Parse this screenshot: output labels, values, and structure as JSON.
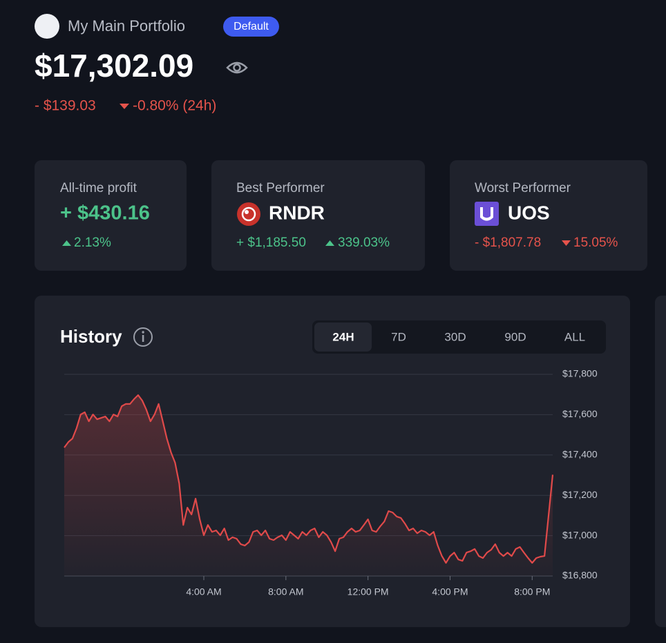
{
  "header": {
    "portfolio_name": "My Main Portfolio",
    "badge": "Default",
    "balance": "$17,302.09",
    "change_amount": "- $139.03",
    "change_percent": "-0.80% (24h)"
  },
  "cards": [
    {
      "label": "All-time profit",
      "value": "+ $430.16",
      "percent": "2.13%"
    },
    {
      "label": "Best Performer",
      "coin": "RNDR",
      "amount": "+ $1,185.50",
      "percent": "339.03%"
    },
    {
      "label": "Worst Performer",
      "coin": "UOS",
      "amount": "- $1,807.78",
      "percent": "15.05%"
    }
  ],
  "chart_data": {
    "type": "line",
    "title": "History",
    "tabs": [
      "24H",
      "7D",
      "30D",
      "90D",
      "ALL"
    ],
    "x": [
      -2.8,
      -2.6,
      -2.4,
      -2.2,
      -2,
      -1.8,
      -1.6,
      -1.4,
      -1.2,
      -1,
      -0.8,
      -0.6,
      -0.4,
      -0.2,
      0,
      0.2,
      0.4,
      0.6,
      0.8,
      1,
      1.2,
      1.4,
      1.6,
      1.8,
      2,
      2.2,
      2.4,
      2.6,
      2.8,
      3,
      3.2,
      3.4,
      3.6,
      3.8,
      4,
      4.2,
      4.4,
      4.6,
      4.8,
      5,
      5.2,
      5.4,
      5.6,
      5.8,
      6,
      6.2,
      6.4,
      6.6,
      6.8,
      7,
      7.2,
      7.4,
      7.6,
      7.8,
      8,
      8.2,
      8.4,
      8.6,
      8.8,
      9,
      9.2,
      9.4,
      9.6,
      9.8,
      10,
      10.2,
      10.4,
      10.6,
      10.8,
      11,
      11.2,
      11.4,
      11.6,
      11.8,
      12,
      12.2,
      12.4,
      12.6,
      12.8,
      13,
      13.2,
      13.4,
      13.6,
      13.8,
      14,
      14.2,
      14.4,
      14.6,
      14.8,
      15,
      15.2,
      15.4,
      15.6,
      15.8,
      16,
      16.2,
      16.4,
      16.6,
      16.8,
      17,
      17.2,
      17.4,
      17.6,
      17.8,
      18,
      18.2,
      18.4,
      18.6,
      18.8,
      19,
      19.2,
      19.4,
      19.6,
      19.8,
      20,
      20.2,
      20.4,
      20.6,
      21
    ],
    "series": [
      {
        "color": "#e04a4a",
        "values": [
          17437,
          17464,
          17482,
          17533,
          17601,
          17612,
          17567,
          17601,
          17577,
          17584,
          17591,
          17567,
          17601,
          17591,
          17642,
          17653,
          17653,
          17677,
          17697,
          17670,
          17625,
          17567,
          17601,
          17653,
          17567,
          17482,
          17413,
          17362,
          17259,
          17053,
          17139,
          17105,
          17184,
          17081,
          17002,
          17053,
          17019,
          17026,
          17002,
          17036,
          16978,
          16992,
          16985,
          16958,
          16951,
          16968,
          17019,
          17026,
          17002,
          17026,
          16985,
          16978,
          16992,
          17002,
          16978,
          17019,
          17002,
          16985,
          17019,
          17002,
          17026,
          17036,
          16992,
          17019,
          17002,
          16968,
          16923,
          16985,
          16992,
          17019,
          17036,
          17019,
          17026,
          17053,
          17081,
          17026,
          17019,
          17047,
          17071,
          17122,
          17115,
          17095,
          17088,
          17060,
          17026,
          17036,
          17012,
          17026,
          17019,
          17002,
          17019,
          16951,
          16899,
          16865,
          16899,
          16916,
          16882,
          16875,
          16916,
          16923,
          16934,
          16899,
          16889,
          16916,
          16930,
          16958,
          16916,
          16899,
          16916,
          16899,
          16934,
          16944,
          16916,
          16889,
          16865,
          16889,
          16896,
          16899,
          17302
        ]
      }
    ],
    "xlim": [
      -2.8,
      21
    ],
    "ylim": [
      16800,
      17800
    ],
    "yticks": [
      {
        "value": 16800,
        "label": "$16,800"
      },
      {
        "value": 17000,
        "label": "$17,000"
      },
      {
        "value": 17200,
        "label": "$17,200"
      },
      {
        "value": 17400,
        "label": "$17,400"
      },
      {
        "value": 17600,
        "label": "$17,600"
      },
      {
        "value": 17800,
        "label": "$17,800"
      }
    ],
    "xticks": [
      {
        "value": 4,
        "label": "4:00 AM"
      },
      {
        "value": 8,
        "label": "8:00 AM"
      },
      {
        "value": 12,
        "label": "12:00 PM"
      },
      {
        "value": 16,
        "label": "4:00 PM"
      },
      {
        "value": 20,
        "label": "8:00 PM"
      }
    ],
    "grid": true
  }
}
